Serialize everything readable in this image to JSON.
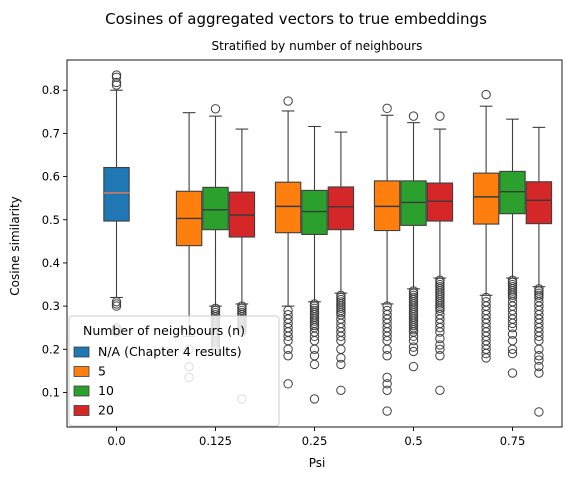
{
  "chart_data": {
    "type": "box",
    "title": "Cosines of aggregated vectors to true embeddings",
    "subtitle": "Stratified by number of neighbours",
    "xlabel": "Psi",
    "ylabel": "Cosine similarity",
    "categories": [
      "0.0",
      "0.125",
      "0.25",
      "0.5",
      "0.75"
    ],
    "ylim": [
      0.02,
      0.87
    ],
    "yticks": [
      0.1,
      0.2,
      0.3,
      0.4,
      0.5,
      0.6,
      0.7,
      0.8
    ],
    "ytick_labels": [
      "0.1",
      "0.2",
      "0.3",
      "0.4",
      "0.5",
      "0.6",
      "0.7",
      "0.8"
    ],
    "legend": {
      "title": "Number of neighbours (n)",
      "placement": "lower-left",
      "entries": [
        "N/A (Chapter 4 results)",
        "5",
        "10",
        "20"
      ]
    },
    "series": [
      {
        "name": "N/A (Chapter 4 results)",
        "color": "#1f77b4",
        "median_color": "#e8804a",
        "boxes": [
          {
            "category": "0.0",
            "whisker_low": 0.32,
            "q1": 0.497,
            "median": 0.562,
            "q3": 0.621,
            "whisker_high": 0.8,
            "outliers": [
              0.835,
              0.83,
              0.818,
              0.812,
              0.31,
              0.305,
              0.3,
              0.25,
              0.245,
              0.24
            ]
          }
        ]
      },
      {
        "name": "5",
        "color": "#ff7f0e",
        "median_color": "#3a3a3a",
        "boxes": [
          {
            "category": "0.125",
            "whisker_low": 0.23,
            "q1": 0.44,
            "median": 0.503,
            "q3": 0.566,
            "whisker_high": 0.748,
            "outliers": [
              0.2,
              0.16,
              0.135
            ]
          },
          {
            "category": "0.25",
            "whisker_low": 0.3,
            "q1": 0.47,
            "median": 0.531,
            "q3": 0.587,
            "whisker_high": 0.752,
            "outliers": [
              0.775,
              0.29,
              0.28,
              0.27,
              0.26,
              0.25,
              0.24,
              0.23,
              0.22,
              0.2,
              0.185,
              0.12
            ]
          },
          {
            "category": "0.5",
            "whisker_low": 0.305,
            "q1": 0.475,
            "median": 0.531,
            "q3": 0.59,
            "whisker_high": 0.742,
            "outliers": [
              0.758,
              0.3,
              0.29,
              0.28,
              0.27,
              0.26,
              0.25,
              0.24,
              0.23,
              0.22,
              0.2,
              0.185,
              0.135,
              0.12,
              0.105,
              0.057
            ]
          },
          {
            "category": "0.75",
            "whisker_low": 0.325,
            "q1": 0.49,
            "median": 0.553,
            "q3": 0.608,
            "whisker_high": 0.763,
            "outliers": [
              0.79,
              0.32,
              0.31,
              0.3,
              0.29,
              0.28,
              0.27,
              0.26,
              0.25,
              0.24,
              0.23,
              0.22,
              0.21,
              0.2,
              0.19,
              0.18
            ]
          }
        ]
      },
      {
        "name": "10",
        "color": "#2ca02c",
        "median_color": "#3a3a3a",
        "boxes": [
          {
            "category": "0.125",
            "whisker_low": 0.3,
            "q1": 0.477,
            "median": 0.523,
            "q3": 0.575,
            "whisker_high": 0.74,
            "outliers": [
              0.757,
              0.295,
              0.29,
              0.285,
              0.28,
              0.275,
              0.27,
              0.265,
              0.26,
              0.255,
              0.25,
              0.245,
              0.24,
              0.235,
              0.23,
              0.225,
              0.22,
              0.215,
              0.21,
              0.205,
              0.2
            ]
          },
          {
            "category": "0.25",
            "whisker_low": 0.31,
            "q1": 0.466,
            "median": 0.519,
            "q3": 0.568,
            "whisker_high": 0.716,
            "outliers": [
              0.305,
              0.3,
              0.295,
              0.29,
              0.285,
              0.28,
              0.275,
              0.27,
              0.265,
              0.26,
              0.255,
              0.25,
              0.24,
              0.23,
              0.22,
              0.2,
              0.185,
              0.165,
              0.085
            ]
          },
          {
            "category": "0.5",
            "whisker_low": 0.34,
            "q1": 0.487,
            "median": 0.54,
            "q3": 0.59,
            "whisker_high": 0.725,
            "outliers": [
              0.74,
              0.335,
              0.33,
              0.325,
              0.32,
              0.315,
              0.31,
              0.305,
              0.3,
              0.295,
              0.29,
              0.285,
              0.28,
              0.275,
              0.27,
              0.265,
              0.26,
              0.255,
              0.25,
              0.245,
              0.24,
              0.23,
              0.22,
              0.205,
              0.195,
              0.16
            ]
          },
          {
            "category": "0.75",
            "whisker_low": 0.365,
            "q1": 0.514,
            "median": 0.565,
            "q3": 0.612,
            "whisker_high": 0.733,
            "outliers": [
              0.36,
              0.355,
              0.35,
              0.345,
              0.34,
              0.335,
              0.33,
              0.325,
              0.32,
              0.31,
              0.3,
              0.29,
              0.28,
              0.27,
              0.26,
              0.25,
              0.235,
              0.22,
              0.2,
              0.19,
              0.145
            ]
          }
        ]
      },
      {
        "name": "20",
        "color": "#d62728",
        "median_color": "#3a3a3a",
        "boxes": [
          {
            "category": "0.125",
            "whisker_low": 0.305,
            "q1": 0.46,
            "median": 0.511,
            "q3": 0.564,
            "whisker_high": 0.71,
            "outliers": [
              0.3,
              0.295,
              0.29,
              0.285,
              0.28,
              0.275,
              0.27,
              0.265,
              0.26,
              0.255,
              0.25,
              0.245,
              0.24,
              0.085
            ]
          },
          {
            "category": "0.25",
            "whisker_low": 0.33,
            "q1": 0.477,
            "median": 0.53,
            "q3": 0.576,
            "whisker_high": 0.703,
            "outliers": [
              0.325,
              0.32,
              0.315,
              0.31,
              0.305,
              0.3,
              0.295,
              0.29,
              0.285,
              0.28,
              0.27,
              0.26,
              0.25,
              0.24,
              0.23,
              0.22,
              0.2,
              0.18,
              0.165,
              0.105
            ]
          },
          {
            "category": "0.5",
            "whisker_low": 0.365,
            "q1": 0.497,
            "median": 0.543,
            "q3": 0.585,
            "whisker_high": 0.71,
            "outliers": [
              0.74,
              0.36,
              0.355,
              0.35,
              0.345,
              0.34,
              0.335,
              0.33,
              0.325,
              0.32,
              0.315,
              0.31,
              0.305,
              0.3,
              0.295,
              0.29,
              0.28,
              0.27,
              0.26,
              0.25,
              0.24,
              0.225,
              0.21,
              0.2,
              0.185,
              0.105
            ]
          },
          {
            "category": "0.75",
            "whisker_low": 0.345,
            "q1": 0.491,
            "median": 0.545,
            "q3": 0.588,
            "whisker_high": 0.714,
            "outliers": [
              0.34,
              0.335,
              0.33,
              0.325,
              0.32,
              0.31,
              0.3,
              0.29,
              0.28,
              0.27,
              0.26,
              0.25,
              0.24,
              0.23,
              0.22,
              0.2,
              0.185,
              0.175,
              0.16,
              0.145,
              0.055
            ]
          }
        ]
      }
    ]
  }
}
